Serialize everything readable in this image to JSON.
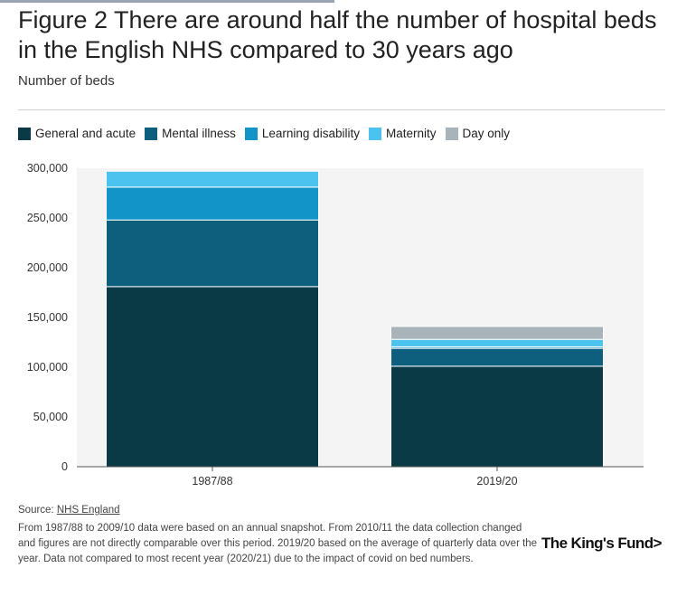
{
  "figure": {
    "title": "Figure 2 There are around half the number of hospital beds in the English NHS compared to 30 years ago",
    "subtitle": "Number of beds"
  },
  "legend": [
    {
      "label": "General and acute",
      "color": "#0b3a47"
    },
    {
      "label": "Mental illness",
      "color": "#0e5f7d"
    },
    {
      "label": "Learning disability",
      "color": "#1294c9"
    },
    {
      "label": "Maternity",
      "color": "#4cc3ee"
    },
    {
      "label": "Day only",
      "color": "#a9b3ba"
    }
  ],
  "chart_data": {
    "type": "bar",
    "stacked": true,
    "title": "There are around half the number of hospital beds in the English NHS compared to 30 years ago",
    "ylabel": "Number of beds",
    "xlabel": "",
    "categories": [
      "1987/88",
      "2019/20"
    ],
    "ylim": [
      0,
      300000
    ],
    "yticks": [
      0,
      50000,
      100000,
      150000,
      200000,
      250000,
      300000
    ],
    "ytick_labels": [
      "0",
      "50,000",
      "100,000",
      "150,000",
      "200,000",
      "250,000",
      "300,000"
    ],
    "grid": false,
    "legend_position": "top-left",
    "series": [
      {
        "name": "General and acute",
        "values": [
          181000,
          101000
        ]
      },
      {
        "name": "Mental illness",
        "values": [
          67000,
          18000
        ]
      },
      {
        "name": "Learning disability",
        "values": [
          33000,
          1500
        ]
      },
      {
        "name": "Maternity",
        "values": [
          16000,
          7500
        ]
      },
      {
        "name": "Day only",
        "values": [
          0,
          13000
        ]
      }
    ]
  },
  "source": {
    "prefix": "Source: ",
    "link_text": "NHS England"
  },
  "note": "From 1987/88 to 2009/10 data were based on an annual snapshot. From 2010/11 the data collection changed and figures are not directly comparable over this period. 2019/20 based on the average of quarterly data over the year. Data not compared to most recent year (2020/21) due to the impact of covid on bed numbers.",
  "branding": {
    "logo_text": "The King's Fund",
    "logo_mark": ">"
  }
}
